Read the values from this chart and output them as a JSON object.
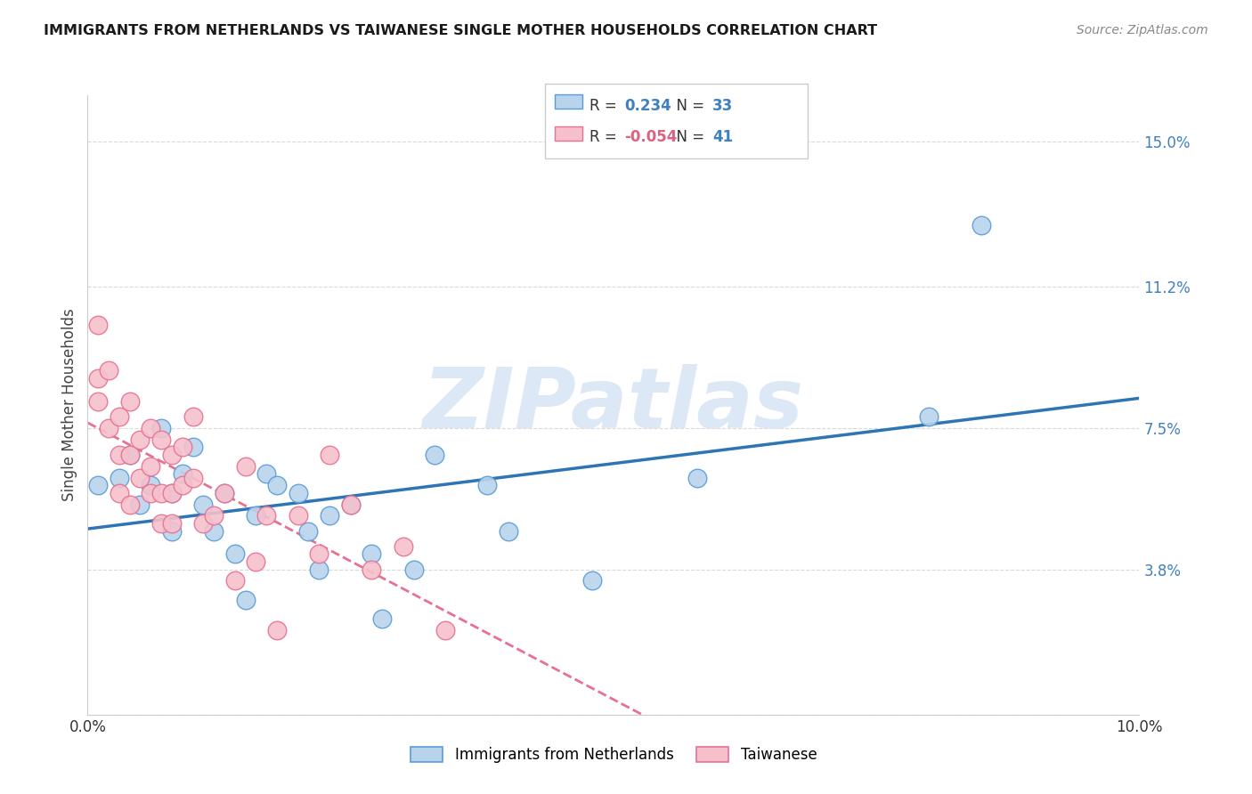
{
  "title": "IMMIGRANTS FROM NETHERLANDS VS TAIWANESE SINGLE MOTHER HOUSEHOLDS CORRELATION CHART",
  "source": "Source: ZipAtlas.com",
  "ylabel": "Single Mother Households",
  "yticks": [
    0.0,
    0.038,
    0.075,
    0.112,
    0.15
  ],
  "ytick_labels": [
    "",
    "3.8%",
    "7.5%",
    "11.2%",
    "15.0%"
  ],
  "xlim": [
    0.0,
    0.1
  ],
  "ylim": [
    0.0,
    0.162
  ],
  "legend_blue_r": "0.234",
  "legend_blue_n": "33",
  "legend_pink_r": "-0.054",
  "legend_pink_n": "41",
  "blue_label": "Immigrants from Netherlands",
  "pink_label": "Taiwanese",
  "blue_color": "#b8d4ec",
  "pink_color": "#f5c0cc",
  "blue_edge_color": "#5b9bd5",
  "pink_edge_color": "#e87090",
  "blue_line_color": "#2e75b6",
  "pink_line_color": "#e87090",
  "watermark_color": "#dce8f5",
  "grid_color": "#d9d9d9",
  "blue_x": [
    0.001,
    0.003,
    0.004,
    0.005,
    0.006,
    0.007,
    0.008,
    0.008,
    0.009,
    0.01,
    0.011,
    0.012,
    0.013,
    0.014,
    0.015,
    0.016,
    0.017,
    0.018,
    0.02,
    0.021,
    0.022,
    0.023,
    0.025,
    0.027,
    0.028,
    0.031,
    0.033,
    0.038,
    0.04,
    0.048,
    0.058,
    0.08,
    0.085
  ],
  "blue_y": [
    0.06,
    0.062,
    0.068,
    0.055,
    0.06,
    0.075,
    0.058,
    0.048,
    0.063,
    0.07,
    0.055,
    0.048,
    0.058,
    0.042,
    0.03,
    0.052,
    0.063,
    0.06,
    0.058,
    0.048,
    0.038,
    0.052,
    0.055,
    0.042,
    0.025,
    0.038,
    0.068,
    0.06,
    0.048,
    0.035,
    0.062,
    0.078,
    0.128
  ],
  "pink_x": [
    0.001,
    0.001,
    0.001,
    0.002,
    0.002,
    0.003,
    0.003,
    0.003,
    0.004,
    0.004,
    0.004,
    0.005,
    0.005,
    0.006,
    0.006,
    0.006,
    0.007,
    0.007,
    0.007,
    0.008,
    0.008,
    0.008,
    0.009,
    0.009,
    0.01,
    0.01,
    0.011,
    0.012,
    0.013,
    0.014,
    0.015,
    0.016,
    0.017,
    0.018,
    0.02,
    0.022,
    0.023,
    0.025,
    0.027,
    0.03,
    0.034
  ],
  "pink_y": [
    0.102,
    0.088,
    0.082,
    0.09,
    0.075,
    0.078,
    0.068,
    0.058,
    0.082,
    0.068,
    0.055,
    0.072,
    0.062,
    0.075,
    0.065,
    0.058,
    0.072,
    0.058,
    0.05,
    0.068,
    0.058,
    0.05,
    0.07,
    0.06,
    0.078,
    0.062,
    0.05,
    0.052,
    0.058,
    0.035,
    0.065,
    0.04,
    0.052,
    0.022,
    0.052,
    0.042,
    0.068,
    0.055,
    0.038,
    0.044,
    0.022
  ]
}
